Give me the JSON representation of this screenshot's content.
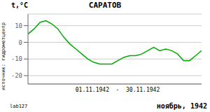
{
  "chart_data": {
    "type": "line",
    "title": "САРАТОВ",
    "ylabel": "t,°C",
    "xlabel": "01.11.1942  -  30.11.1942",
    "annotations": [
      "ноябрь, 1942",
      "источник: гидрометцентр",
      "lab127"
    ],
    "x": [
      1,
      2,
      3,
      4,
      5,
      6,
      7,
      8,
      9,
      10,
      11,
      12,
      13,
      14,
      15,
      16,
      17,
      18,
      19,
      20,
      21,
      22,
      23,
      24,
      25,
      26,
      27,
      28,
      29,
      30
    ],
    "values": [
      5,
      8,
      12,
      13,
      11,
      8,
      3,
      -1,
      -4,
      -7,
      -10,
      -12,
      -13,
      -13,
      -13,
      -11,
      -9,
      -8,
      -8,
      -7,
      -5,
      -3,
      -5,
      -4,
      -5,
      -7,
      -11,
      -11,
      -8,
      -5
    ],
    "color": "#00aa00",
    "xlim": [
      1,
      30
    ],
    "ylim": [
      -25,
      17
    ],
    "yticks": [
      -20,
      -10,
      0,
      10
    ],
    "grid": true,
    "tick_labels": "y"
  }
}
